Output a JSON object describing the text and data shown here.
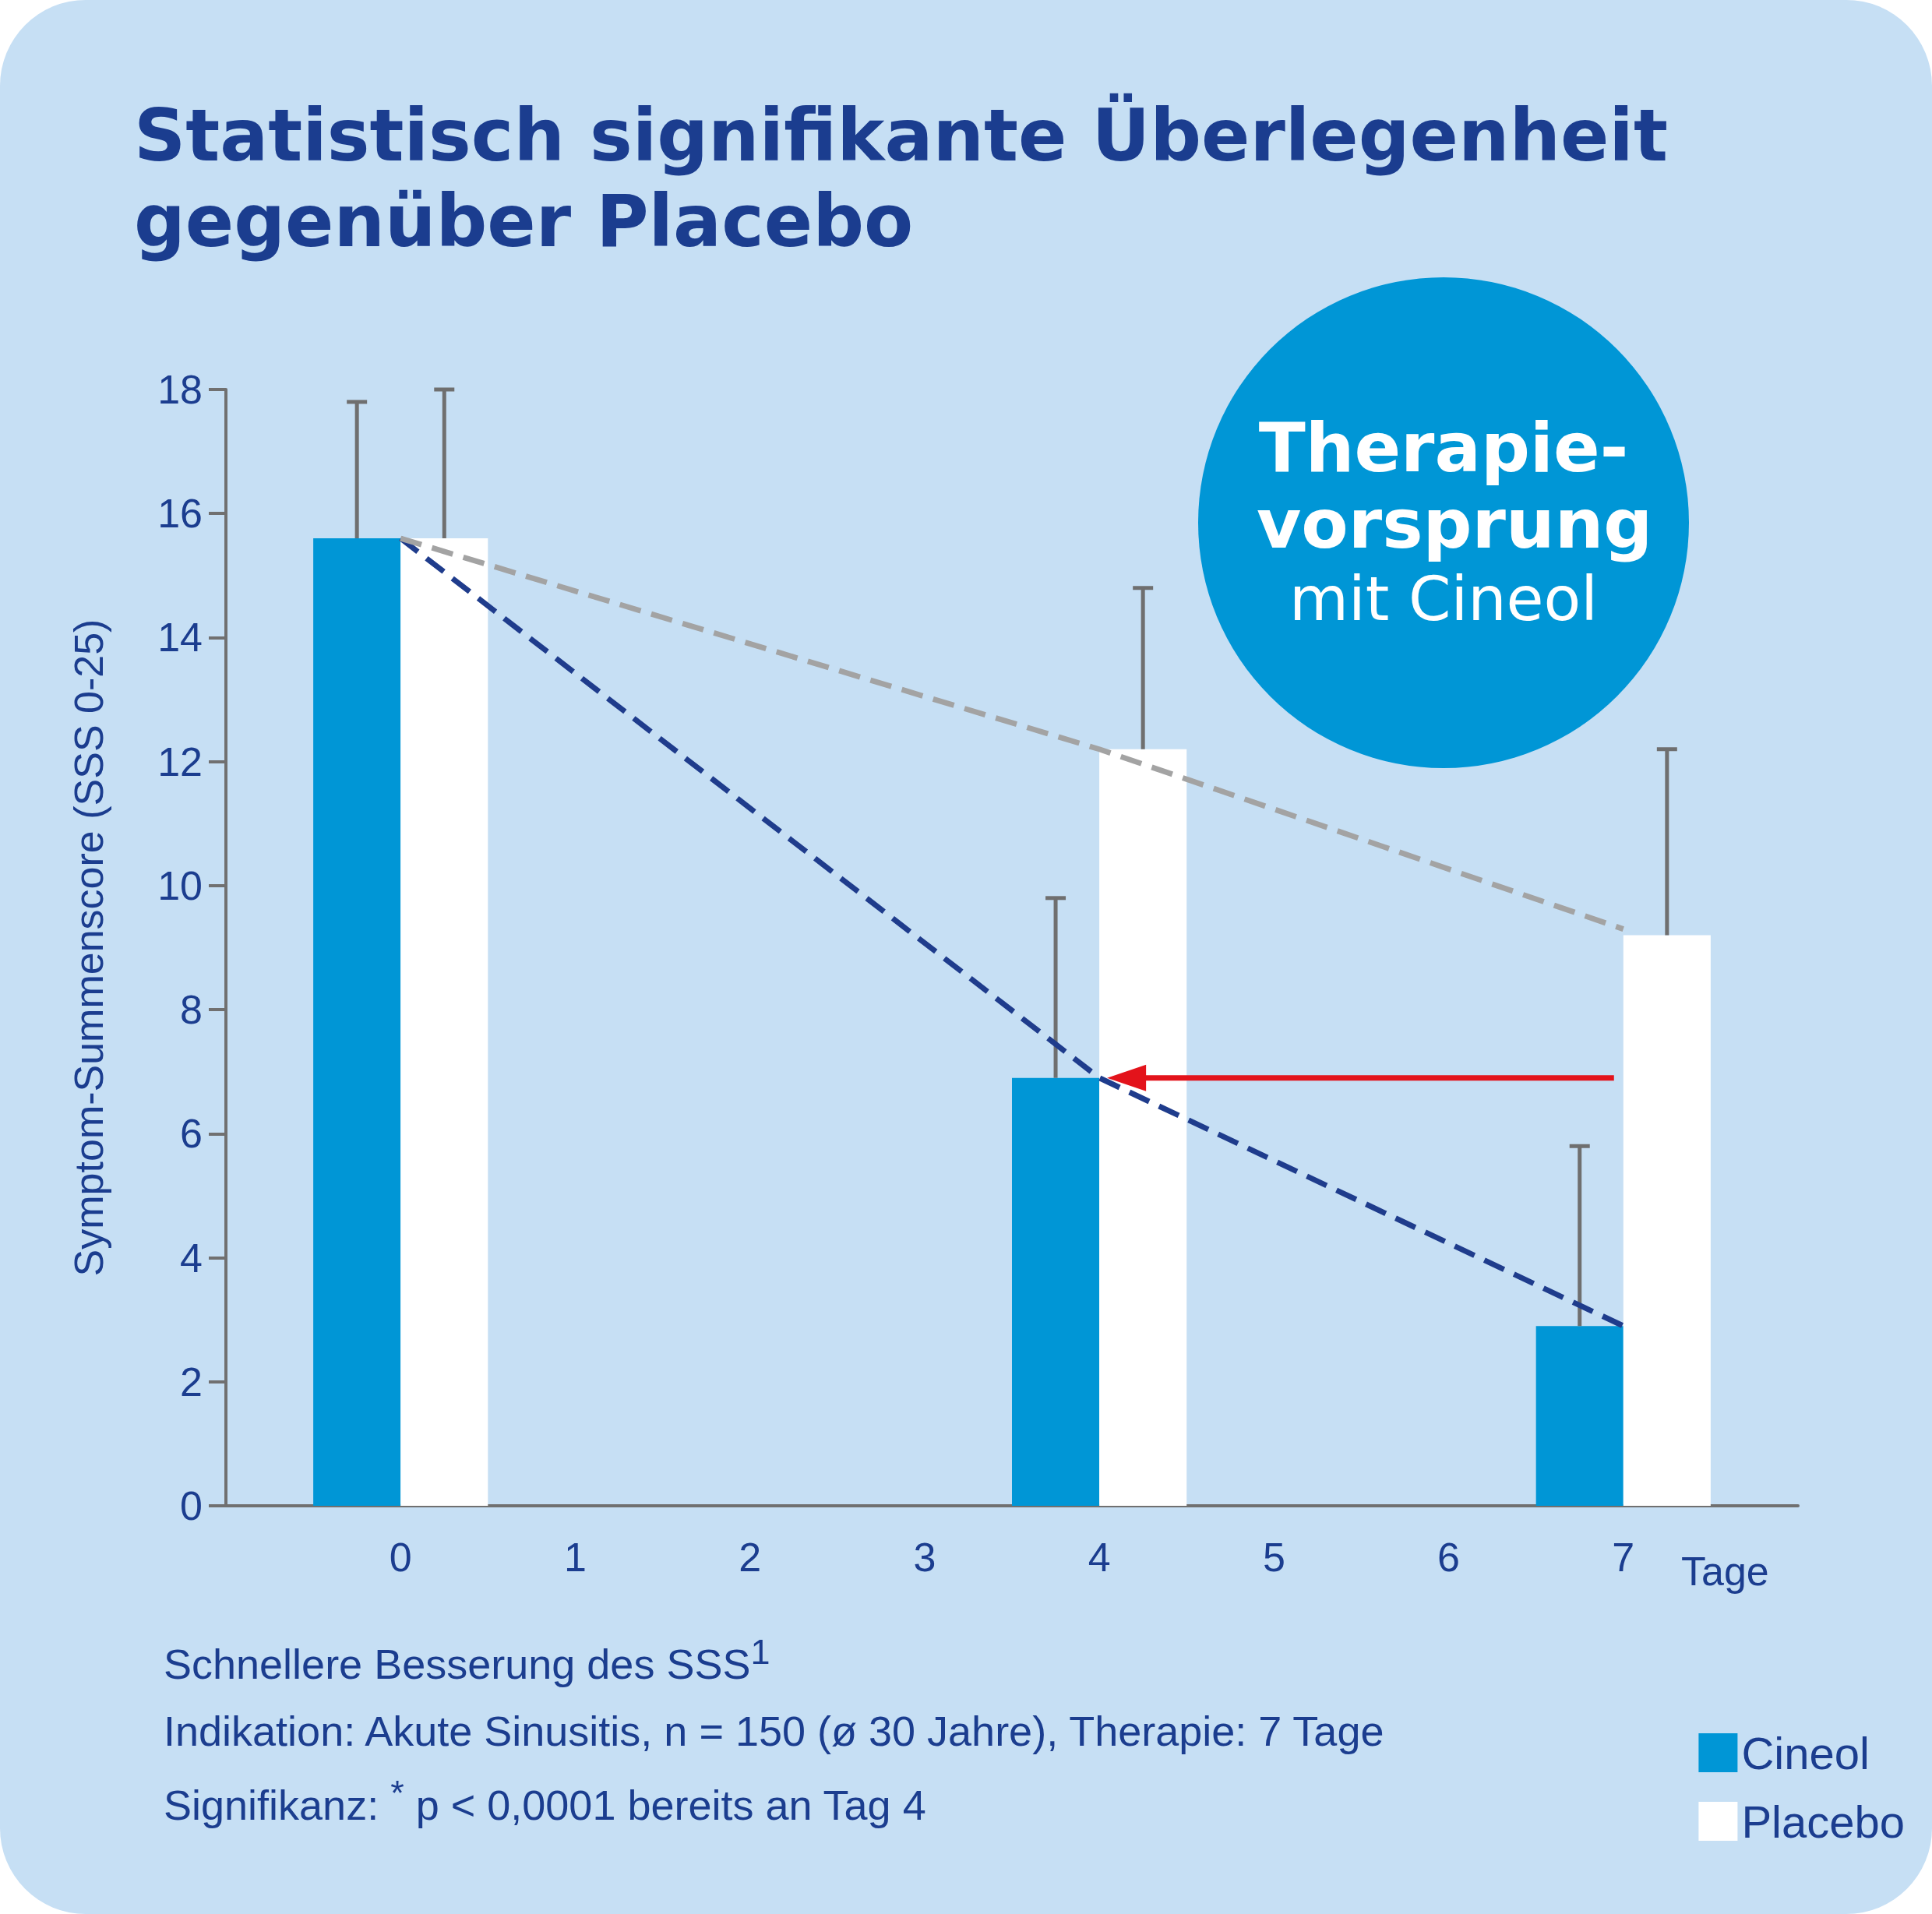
{
  "chart_data": {
    "type": "bar",
    "title": "Statistisch signifikante Überlegenheit gegenüber Placebo",
    "xlabel": "Tage",
    "ylabel": "Symptom-Summenscore (SSS 0-25)",
    "x": [
      0,
      4,
      7
    ],
    "series": [
      {
        "name": "Cineol",
        "color": "#0096d6",
        "values": [
          15.6,
          6.9,
          2.9
        ],
        "errors": [
          [
            15.6,
            17.8
          ],
          [
            6.9,
            9.8
          ],
          [
            2.9,
            5.8
          ]
        ]
      },
      {
        "name": "Placebo",
        "color": "#ffffff",
        "values": [
          15.6,
          12.2,
          9.2
        ],
        "errors": [
          [
            15.6,
            18.0
          ],
          [
            12.2,
            14.8
          ],
          [
            9.2,
            12.2
          ]
        ]
      },
      {
        "type": "line",
        "color": "#1f3c8c",
        "x": [
          0,
          4,
          7
        ],
        "values": [
          15.6,
          6.9,
          2.9
        ],
        "line_style": "dashed",
        "marker": "none"
      },
      {
        "type": "line",
        "color": "#a3a3a3",
        "x": [
          0,
          4,
          7
        ],
        "values": [
          15.6,
          12.2,
          9.3
        ],
        "line_style": "dashed",
        "marker": "none"
      }
    ],
    "xlim": [
      -1,
      8
    ],
    "xticks": [
      0,
      1,
      2,
      3,
      4,
      5,
      6,
      7
    ],
    "ylim": [
      0,
      18
    ],
    "yticks": [
      0,
      2,
      4,
      6,
      8,
      10,
      12,
      14,
      16,
      18
    ],
    "grid": false,
    "legend": "bottom right",
    "annotations": [
      "Therapie-vorsprung",
      "mit Cineol",
      "Schnellere Besserung des SSS$^{1}$",
      "Indikation: Akute Sinusitis, n = 150 (ø 30 Jahre), Therapie: 7 Tage",
      "Signifikanz: $^{*}$ p < 0,0001 bereits an Tag 4"
    ]
  }
}
